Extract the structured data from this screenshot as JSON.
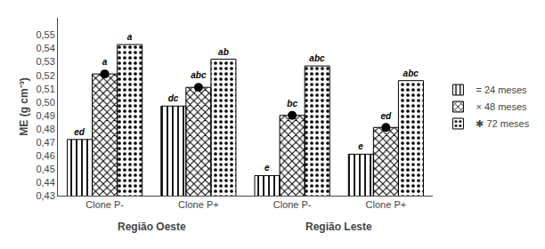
{
  "chart_data": {
    "type": "bar",
    "categories": [
      "Clone P-",
      "Clone P+",
      "Clone P-",
      "Clone P+"
    ],
    "series": [
      {
        "name": "= 24 meses",
        "color": "white",
        "values": [
          0.472,
          0.497,
          0.445,
          0.461
        ],
        "annotations": [
          "ed",
          "dc",
          "e",
          "e"
        ]
      },
      {
        "name": "× 48 meses",
        "color": "white",
        "values": [
          0.521,
          0.511,
          0.49,
          0.481
        ],
        "annotations": [
          "a",
          "abc",
          "bc",
          "ed"
        ],
        "marker": "circle"
      },
      {
        "name": "✱ 72 meses",
        "color": "white",
        "values": [
          0.543,
          0.532,
          0.527,
          0.516
        ],
        "annotations": [
          "a",
          "ab",
          "abc",
          "abc"
        ]
      }
    ],
    "ylabel": "ME (g cm⁻³)",
    "ylim": [
      0.43,
      0.563
    ],
    "yticks": [
      {
        "value": 0.43,
        "label": "0,43"
      },
      {
        "value": 0.44,
        "label": "0,44"
      },
      {
        "value": 0.45,
        "label": "0,45"
      },
      {
        "value": 0.46,
        "label": "0,46"
      },
      {
        "value": 0.47,
        "label": "0,47"
      },
      {
        "value": 0.48,
        "label": "0,48"
      },
      {
        "value": 0.49,
        "label": "0,49"
      },
      {
        "value": 0.5,
        "label": "0,50"
      },
      {
        "value": 0.51,
        "label": "0,51"
      },
      {
        "value": 0.52,
        "label": "0,52"
      },
      {
        "value": 0.53,
        "label": "0,53"
      },
      {
        "value": 0.54,
        "label": "0,54"
      },
      {
        "value": 0.55,
        "label": "0,55"
      }
    ],
    "grid": false,
    "legend": "right",
    "regions": [
      "Região Oeste",
      "Região Leste"
    ]
  }
}
